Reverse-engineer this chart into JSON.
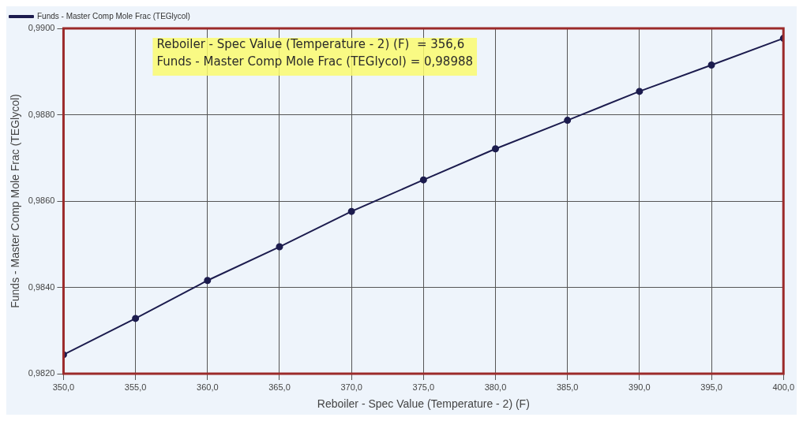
{
  "chart_data": {
    "type": "line",
    "xlabel": "Reboiler - Spec Value (Temperature - 2) (F)",
    "ylabel": "Funds - Master Comp Mole Frac (TEGlycol)",
    "x": [
      350,
      355,
      360,
      365,
      370,
      375,
      380,
      385,
      390,
      395,
      400
    ],
    "series": [
      {
        "name": "Funds - Master Comp Mole Frac (TEGlycol)",
        "color": "#1c1c4e",
        "values": [
          0.98244,
          0.98328,
          0.98416,
          0.98494,
          0.98576,
          0.98649,
          0.98721,
          0.98787,
          0.98854,
          0.98915,
          0.98977
        ]
      }
    ],
    "xlim": [
      350,
      400
    ],
    "xticks": [
      {
        "value": 350,
        "label": "350,0"
      },
      {
        "value": 355,
        "label": "355,0"
      },
      {
        "value": 360,
        "label": "360,0"
      },
      {
        "value": 365,
        "label": "365,0"
      },
      {
        "value": 370,
        "label": "370,0"
      },
      {
        "value": 375,
        "label": "375,0"
      },
      {
        "value": 380,
        "label": "380,0"
      },
      {
        "value": 385,
        "label": "385,0"
      },
      {
        "value": 390,
        "label": "390,0"
      },
      {
        "value": 395,
        "label": "395,0"
      },
      {
        "value": 400,
        "label": "400,0"
      }
    ],
    "ylim": [
      0.982,
      0.99
    ],
    "yticks": [
      {
        "value": 0.982,
        "label": "0,9820"
      },
      {
        "value": 0.984,
        "label": "0,9840"
      },
      {
        "value": 0.986,
        "label": "0,9860"
      },
      {
        "value": 0.988,
        "label": "0,9880"
      },
      {
        "value": 0.99,
        "label": "0,9900"
      }
    ],
    "annotations": [
      "Reboiler - Spec Value (Temperature - 2) (F)  = 356,6",
      "Funds - Master Comp Mole Frac (TEGlycol) = 0,98988"
    ],
    "grid": true,
    "legend": "top left",
    "marker": "circle",
    "line_style": "solid"
  }
}
